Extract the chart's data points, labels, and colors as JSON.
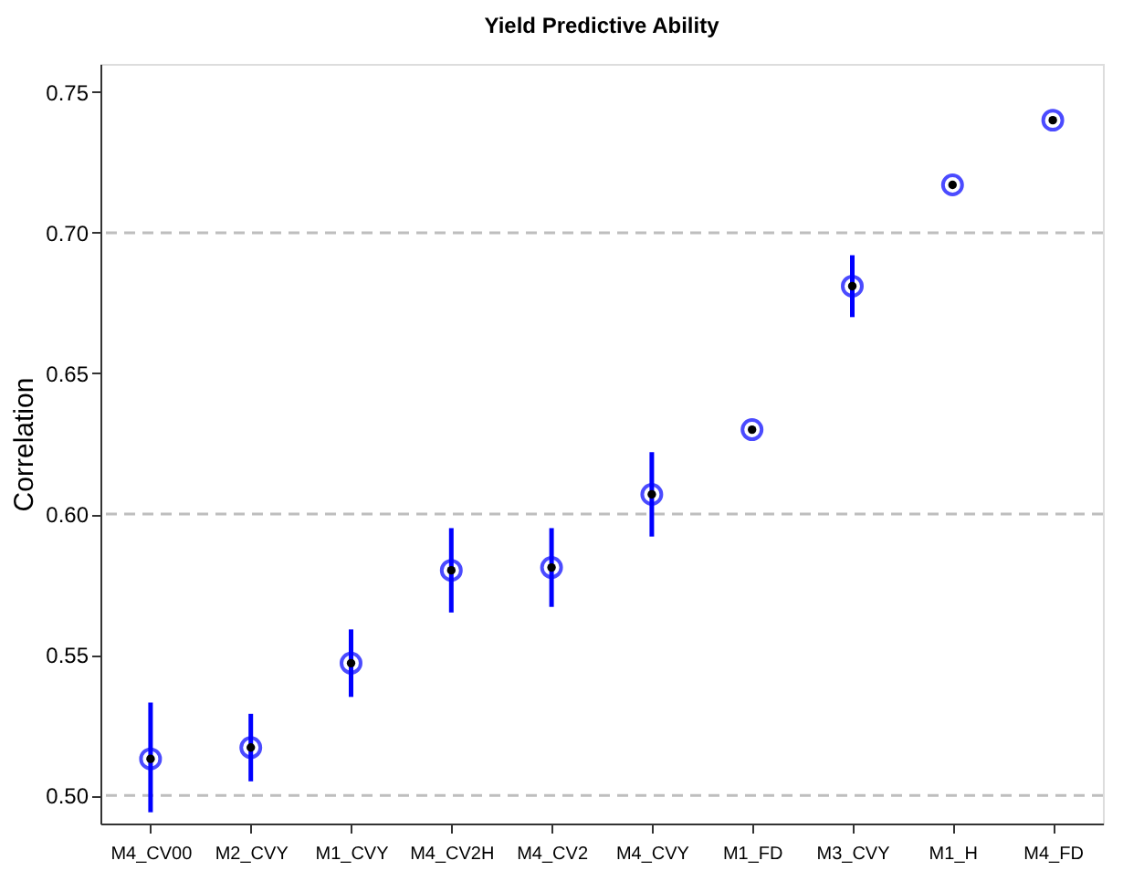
{
  "chart_data": {
    "type": "scatter",
    "title": "Yield Predictive Ability",
    "ylabel": "Correlation",
    "categories": [
      "M4_CV00",
      "M2_CVY",
      "M1_CVY",
      "M4_CV2H",
      "M4_CV2",
      "M4_CVY",
      "M1_FD",
      "M3_CVY",
      "M1_H",
      "M4_FD"
    ],
    "series": [
      {
        "color": "#0000ff",
        "values": [
          0.513,
          0.517,
          0.547,
          0.58,
          0.581,
          0.607,
          0.63,
          0.681,
          0.717,
          0.74
        ],
        "errors": [
          [
            0.494,
            0.533
          ],
          [
            0.505,
            0.529
          ],
          [
            0.535,
            0.559
          ],
          [
            0.565,
            0.595
          ],
          [
            0.567,
            0.595
          ],
          [
            0.592,
            0.622
          ],
          null,
          [
            0.67,
            0.692
          ],
          null,
          null
        ]
      }
    ],
    "ylim": [
      0.49,
      0.76
    ],
    "yticks": [
      {
        "value": 0.5,
        "label": "0.50"
      },
      0.55,
      {
        "value": 0.6,
        "label": "0.60"
      },
      0.65,
      {
        "value": 0.7,
        "label": "0.70"
      },
      0.75
    ],
    "marker": "circle",
    "grid": false,
    "ref_lines": [
      {
        "axis": "y",
        "value": 0.5,
        "color": "#bebebe",
        "line_style": "dashed"
      },
      {
        "axis": "y",
        "value": 0.6,
        "color": "#bebebe",
        "line_style": "dashed"
      },
      {
        "axis": "y",
        "value": 0.7,
        "color": "#bebebe",
        "line_style": "dashed"
      }
    ]
  }
}
